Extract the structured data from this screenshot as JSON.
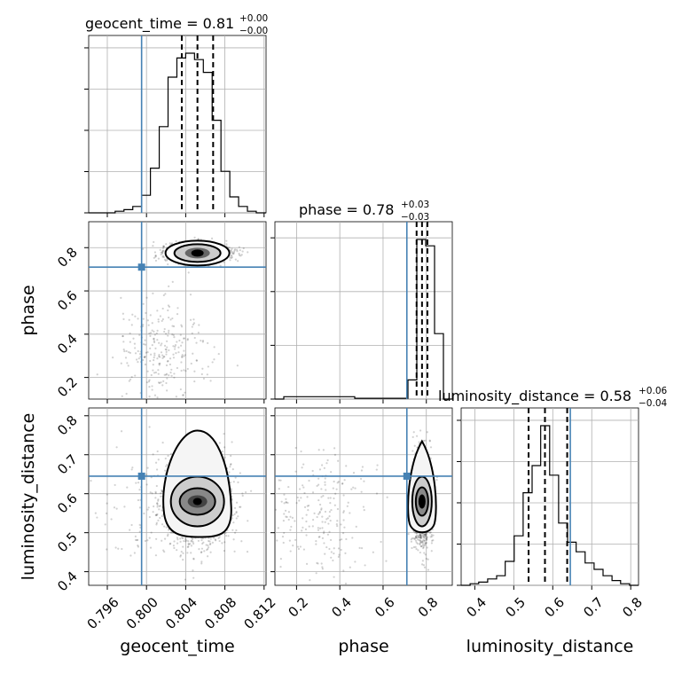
{
  "chart_data": {
    "type": "corner",
    "parameters": [
      "geocent_time",
      "phase",
      "luminosity_distance"
    ],
    "truth_color": "#4682b4",
    "truths": {
      "geocent_time": 0.7995,
      "phase": 0.71,
      "luminosity_distance": 0.645
    },
    "ranges": {
      "geocent_time": [
        0.7941,
        0.8122
      ],
      "phase": [
        0.1,
        0.92
      ],
      "luminosity_distance": [
        0.365,
        0.82
      ]
    },
    "ticks": {
      "geocent_time": [
        "0.796",
        "0.800",
        "0.804",
        "0.808",
        "0.812"
      ],
      "phase_x": [
        "0.2",
        "0.4",
        "0.6",
        "0.8"
      ],
      "phase_y": [
        "0.2",
        "0.4",
        "0.6",
        "0.8"
      ],
      "luminosity_distance_x": [
        "0.4",
        "0.5",
        "0.6",
        "0.7",
        "0.8"
      ],
      "luminosity_distance_y": [
        "0.4",
        "0.5",
        "0.6",
        "0.7",
        "0.8"
      ]
    },
    "titles": [
      {
        "param": "geocent_time",
        "label": "geocent_time = 0.81",
        "plus": "+0.00",
        "minus": "−0.00",
        "median": 0.8052,
        "q16": 0.8036,
        "q84": 0.8068
      },
      {
        "param": "phase",
        "label": "phase = 0.78",
        "plus": "+0.03",
        "minus": "−0.03",
        "median": 0.78,
        "q16": 0.755,
        "q84": 0.805
      },
      {
        "param": "luminosity_distance",
        "label": "luminosity_distance = 0.58",
        "plus": "+0.06",
        "minus": "−0.04",
        "median": 0.58,
        "q16": 0.538,
        "q84": 0.637
      }
    ],
    "histograms": {
      "geocent_time": {
        "bins": [
          0.7941,
          0.795,
          0.7959,
          0.7968,
          0.7977,
          0.7986,
          0.7995,
          0.8004,
          0.8013,
          0.8022,
          0.8031,
          0.804,
          0.8049,
          0.8058,
          0.8067,
          0.8076,
          0.8085,
          0.8094,
          0.8103,
          0.8112,
          0.8122
        ],
        "counts": [
          0,
          0,
          0,
          1,
          2,
          4,
          11,
          28,
          54,
          85,
          97,
          100,
          96,
          88,
          58,
          26,
          10,
          4,
          1,
          0
        ]
      },
      "phase": {
        "bins": [
          0.1,
          0.141,
          0.182,
          0.223,
          0.264,
          0.305,
          0.346,
          0.387,
          0.428,
          0.469,
          0.51,
          0.551,
          0.592,
          0.633,
          0.674,
          0.715,
          0.756,
          0.797,
          0.838,
          0.879,
          0.92
        ],
        "counts": [
          0,
          1.5,
          1.5,
          1.5,
          1.5,
          1.5,
          1.5,
          1.5,
          1.5,
          0.5,
          0.5,
          0.5,
          0.5,
          0.5,
          0.5,
          12,
          100,
          96,
          41,
          0
        ]
      },
      "luminosity_distance": {
        "bins": [
          0.365,
          0.388,
          0.41,
          0.433,
          0.456,
          0.478,
          0.501,
          0.524,
          0.547,
          0.569,
          0.592,
          0.615,
          0.638,
          0.66,
          0.683,
          0.706,
          0.729,
          0.752,
          0.774,
          0.797,
          0.82
        ],
        "counts": [
          0,
          1,
          2,
          4,
          6,
          15,
          31,
          58,
          75,
          100,
          69,
          39,
          27,
          21,
          14,
          10,
          6,
          3,
          1,
          0
        ]
      }
    }
  }
}
